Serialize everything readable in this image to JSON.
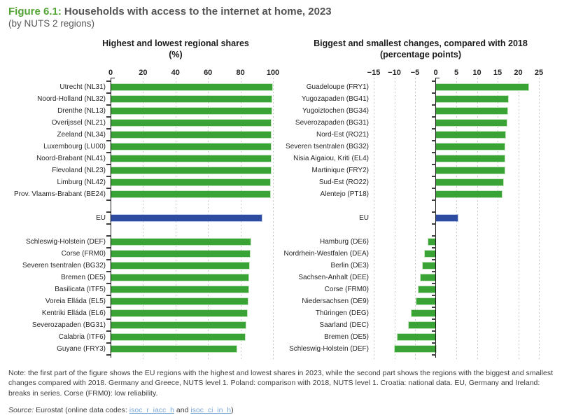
{
  "figure": {
    "label": "Figure 6.1:",
    "title": "Households with access to the internet at home, 2023",
    "subtitle": "(by NUTS 2 regions)"
  },
  "colors": {
    "bar_green": "#3aa335",
    "eu_blue": "#2d4ba0",
    "accent_green": "#52a434",
    "grid": "#c8c8c8",
    "axis": "#1a1a1a"
  },
  "chart_data": [
    {
      "type": "bar",
      "orientation": "horizontal",
      "title": "Highest and lowest regional shares",
      "subtitle": "(%)",
      "xlim": [
        0,
        100
      ],
      "xticks": [
        0,
        20,
        40,
        60,
        80,
        100
      ],
      "xtick_labels": [
        "0",
        "20",
        "40",
        "60",
        "80",
        "100"
      ],
      "grid": "dashed-vertical",
      "legend": "none",
      "groups": [
        {
          "name": "highest",
          "items": [
            {
              "label": "Utrecht (NL31)",
              "value": 99.6
            },
            {
              "label": "Noord-Holland (NL32)",
              "value": 99.3
            },
            {
              "label": "Drenthe (NL13)",
              "value": 99.2
            },
            {
              "label": "Overijssel (NL21)",
              "value": 98.9
            },
            {
              "label": "Zeeland (NL34)",
              "value": 98.9
            },
            {
              "label": "Luxembourg (LU00)",
              "value": 98.7
            },
            {
              "label": "Noord-Brabant (NL41)",
              "value": 98.6
            },
            {
              "label": "Flevoland (NL23)",
              "value": 98.5
            },
            {
              "label": "Limburg (NL42)",
              "value": 98.4
            },
            {
              "label": "Prov. Vlaams-Brabant (BE24)",
              "value": 98.3
            }
          ]
        },
        {
          "name": "eu",
          "items": [
            {
              "label": "EU",
              "value": 93.1,
              "eu": true
            }
          ]
        },
        {
          "name": "lowest",
          "items": [
            {
              "label": "Schleswig-Holstein (DEF)",
              "value": 86.4
            },
            {
              "label": "Corse (FRM0)",
              "value": 85.9
            },
            {
              "label": "Severen tsentralen (BG32)",
              "value": 85.5
            },
            {
              "label": "Bremen (DE5)",
              "value": 84.9
            },
            {
              "label": "Basilicata (ITF5)",
              "value": 84.7
            },
            {
              "label": "Voreia Elláda (EL5)",
              "value": 84.6
            },
            {
              "label": "Kentriki Elláda (EL6)",
              "value": 84.2
            },
            {
              "label": "Severozapaden (BG31)",
              "value": 83.3
            },
            {
              "label": "Calabria (ITF6)",
              "value": 82.9
            },
            {
              "label": "Guyane (FRY3)",
              "value": 77.4
            }
          ]
        }
      ]
    },
    {
      "type": "bar",
      "orientation": "horizontal",
      "title": "Biggest and smallest changes, compared with 2018",
      "subtitle": "(percentage points)",
      "xlim": [
        -15,
        25
      ],
      "xticks": [
        -15,
        -10,
        -5,
        0,
        5,
        10,
        15,
        20,
        25
      ],
      "xtick_labels": [
        "−15",
        "−10",
        "−5",
        "0",
        "5",
        "10",
        "15",
        "20",
        "25"
      ],
      "grid": "dashed-vertical",
      "legend": "none",
      "groups": [
        {
          "name": "biggest",
          "items": [
            {
              "label": "Guadeloupe (FRY1)",
              "value": 22.4
            },
            {
              "label": "Yugozapaden (BG41)",
              "value": 17.5
            },
            {
              "label": "Yugoiztochen (BG34)",
              "value": 17.4
            },
            {
              "label": "Severozapaden (BG31)",
              "value": 17.2
            },
            {
              "label": "Nord-Est (RO21)",
              "value": 16.8
            },
            {
              "label": "Severen tsentralen (BG32)",
              "value": 16.7
            },
            {
              "label": "Nisia Aigaiou, Kriti (EL4)",
              "value": 16.7
            },
            {
              "label": "Martinique  (FRY2)",
              "value": 16.7
            },
            {
              "label": "Sud-Est (RO22)",
              "value": 16.3
            },
            {
              "label": "Alentejo (PT18)",
              "value": 16.0
            }
          ]
        },
        {
          "name": "eu",
          "items": [
            {
              "label": "EU",
              "value": 5.4,
              "eu": true
            }
          ]
        },
        {
          "name": "smallest",
          "items": [
            {
              "label": "Hamburg (DE6)",
              "value": -1.8
            },
            {
              "label": "Nordrhein-Westfalen (DEA)",
              "value": -2.7
            },
            {
              "label": "Berlin (DE3)",
              "value": -3.2
            },
            {
              "label": "Sachsen-Anhalt (DEE)",
              "value": -3.6
            },
            {
              "label": "Corse (FRM0)",
              "value": -4.2
            },
            {
              "label": "Niedersachsen (DE9)",
              "value": -4.7
            },
            {
              "label": "Thüringen (DEG)",
              "value": -5.9
            },
            {
              "label": "Saarland (DEC)",
              "value": -6.5
            },
            {
              "label": "Bremen (DE5)",
              "value": -9.2
            },
            {
              "label": "Schleswig-Holstein (DEF)",
              "value": -10.0
            }
          ]
        }
      ]
    }
  ],
  "note": "Note: the first part of the figure shows the EU regions with the highest and lowest shares in 2023, while the second part shows the regions with the biggest and smallest changes compared with 2018. Germany and Greece, NUTS level 1. Poland: comparison with 2018, NUTS level 1. Croatia: national data. EU, Germany and Ireland: breaks in series. Corse (FRM0): low reliability.",
  "source": {
    "label": "Source:",
    "pre": " Eurostat (online data codes: ",
    "link1": "isoc_r_iacc_h",
    "mid": " and ",
    "link2": "isoc_ci_in_h",
    "post": ")"
  }
}
